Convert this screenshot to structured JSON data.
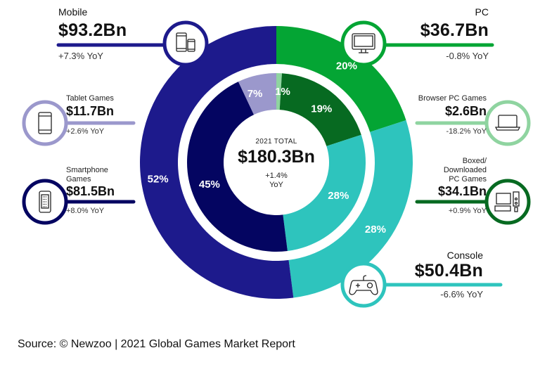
{
  "chart_data": {
    "type": "pie",
    "title": "2021 TOTAL",
    "total": {
      "label": "2021 TOTAL",
      "value": "$180.3Bn",
      "yoy_line1": "+1.4%",
      "yoy_line2": "YoY"
    },
    "outer_ring": [
      {
        "name": "PC",
        "value_bn": 36.7,
        "value_label": "$36.7Bn",
        "yoy": "-0.8% YoY",
        "percent": 20,
        "percent_label": "20%",
        "color": "#04a534",
        "icon": "desktop-monitor-icon"
      },
      {
        "name": "Console",
        "value_bn": 50.4,
        "value_label": "$50.4Bn",
        "yoy": "-6.6% YoY",
        "percent": 28,
        "percent_label": "28%",
        "color": "#2ec4bd",
        "icon": "gamepad-icon"
      },
      {
        "name": "Mobile",
        "value_bn": 93.2,
        "value_label": "$93.2Bn",
        "yoy": "+7.3% YoY",
        "percent": 52,
        "percent_label": "52%",
        "color": "#1d1a8c",
        "icon": "phone-tablet-icon"
      }
    ],
    "inner_ring": [
      {
        "name": "Browser PC Games",
        "value_bn": 2.6,
        "value_label": "$2.6Bn",
        "yoy": "-18.2% YoY",
        "percent": 1,
        "percent_label": "1%",
        "color": "#8fd4a0",
        "icon": "laptop-icon"
      },
      {
        "name": "Boxed/ Downloaded PC Games",
        "name_lines": [
          "Boxed/",
          "Downloaded",
          "PC Games"
        ],
        "value_bn": 34.1,
        "value_label": "$34.1Bn",
        "yoy": "+0.9% YoY",
        "percent": 19,
        "percent_label": "19%",
        "color": "#076a21",
        "icon": "desktop-tower-icon"
      },
      {
        "name": "Console",
        "value_bn": 50.4,
        "percent": 28,
        "percent_label": "28%",
        "color": "#2ec4bd"
      },
      {
        "name": "Smartphone Games",
        "name_lines": [
          "Smartphone",
          "Games"
        ],
        "value_bn": 81.5,
        "value_label": "$81.5Bn",
        "yoy": "+8.0% YoY",
        "percent": 45,
        "percent_label": "45%",
        "color": "#040561",
        "icon": "smartphone-icon"
      },
      {
        "name": "Tablet Games",
        "value_bn": 11.7,
        "value_label": "$11.7Bn",
        "yoy": "+2.6% YoY",
        "percent": 7,
        "percent_label": "7%",
        "color": "#9b98cc",
        "icon": "tablet-icon"
      }
    ],
    "source": "Source: © Newzoo | 2021 Global Games Market Report"
  }
}
